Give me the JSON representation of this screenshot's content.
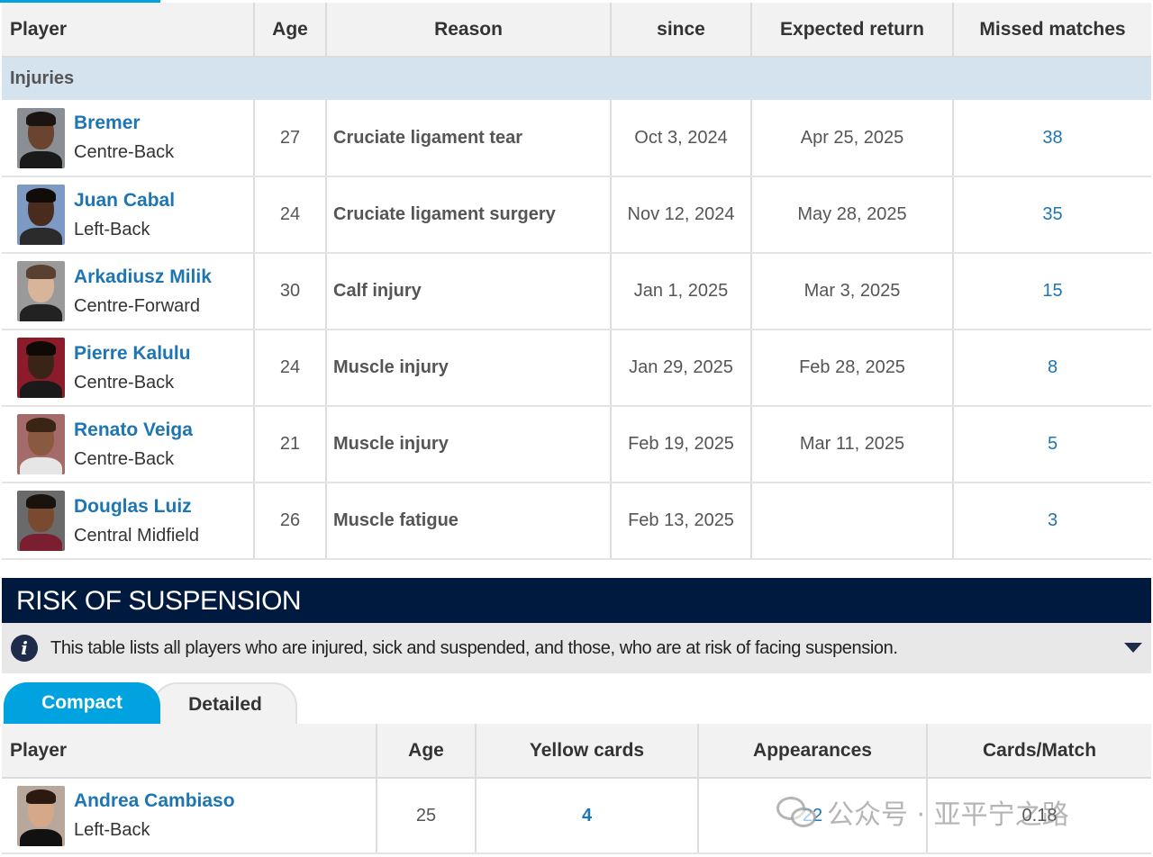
{
  "injuries_table": {
    "headers": [
      "Player",
      "Age",
      "Reason",
      "since",
      "Expected return",
      "Missed matches"
    ],
    "section_label": "Injuries",
    "rows": [
      {
        "name": "Bremer",
        "position": "Centre-Back",
        "age": "27",
        "reason": "Cruciate ligament tear",
        "since": "Oct 3, 2024",
        "expected_return": "Apr 25, 2025",
        "missed": "38"
      },
      {
        "name": "Juan Cabal",
        "position": "Left-Back",
        "age": "24",
        "reason": "Cruciate ligament surgery",
        "since": "Nov 12, 2024",
        "expected_return": "May 28, 2025",
        "missed": "35"
      },
      {
        "name": "Arkadiusz Milik",
        "position": "Centre-Forward",
        "age": "30",
        "reason": "Calf injury",
        "since": "Jan 1, 2025",
        "expected_return": "Mar 3, 2025",
        "missed": "15"
      },
      {
        "name": "Pierre Kalulu",
        "position": "Centre-Back",
        "age": "24",
        "reason": "Muscle injury",
        "since": "Jan 29, 2025",
        "expected_return": "Feb 28, 2025",
        "missed": "8"
      },
      {
        "name": "Renato Veiga",
        "position": "Centre-Back",
        "age": "21",
        "reason": "Muscle injury",
        "since": "Feb 19, 2025",
        "expected_return": "Mar 11, 2025",
        "missed": "5"
      },
      {
        "name": "Douglas Luiz",
        "position": "Central Midfield",
        "age": "26",
        "reason": "Muscle fatigue",
        "since": "Feb 13, 2025",
        "expected_return": "",
        "missed": "3"
      }
    ]
  },
  "suspension": {
    "title": "RISK OF SUSPENSION",
    "info_text": "This table lists all players who are injured, sick and suspended, and those, who are at risk of facing suspension.",
    "info_icon": "info-icon",
    "tabs": [
      {
        "label": "Compact",
        "active": true
      },
      {
        "label": "Detailed",
        "active": false
      }
    ],
    "headers": [
      "Player",
      "Age",
      "Yellow cards",
      "Appearances",
      "Cards/Match"
    ],
    "rows": [
      {
        "name": "Andrea Cambiaso",
        "position": "Left-Back",
        "age": "25",
        "yellow_cards": "4",
        "appearances": "22",
        "cards_per_match": "0.18"
      }
    ]
  },
  "watermark": {
    "text": "公众号 · 亚平宁之路"
  },
  "colors": {
    "accent": "#00a3e0",
    "link": "#1d75b3",
    "header_dark": "#001a3f",
    "section_bg": "#d4e3ee"
  }
}
